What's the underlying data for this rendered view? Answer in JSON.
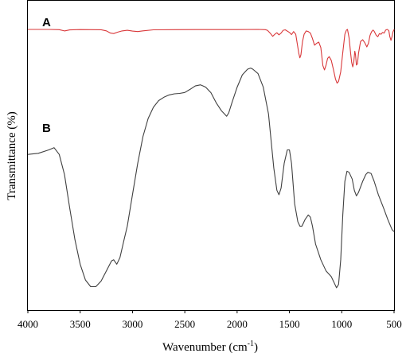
{
  "chart_data": {
    "type": "line",
    "title": "",
    "xlabel": "Wavenumber (cm",
    "xlabel_sup": "-1",
    "xlabel_tail": ")",
    "ylabel": "Transmittance (%)",
    "xlim": [
      4000,
      500
    ],
    "x_reversed": true,
    "y_ticks_shown": false,
    "grid": false,
    "xticks": [
      4000,
      3500,
      3000,
      2500,
      2000,
      1500,
      1000,
      500
    ],
    "xtick_labels": [
      "4000",
      "3500",
      "3000",
      "2500",
      "2000",
      "1500",
      "1000",
      "500"
    ],
    "series": [
      {
        "name": "A",
        "color": "#d9383a",
        "points": [
          [
            4000,
            100
          ],
          [
            3800,
            100
          ],
          [
            3700,
            99.6
          ],
          [
            3650,
            97.5
          ],
          [
            3600,
            99.2
          ],
          [
            3500,
            99.8
          ],
          [
            3300,
            99.5
          ],
          [
            3250,
            97.6
          ],
          [
            3210,
            94.0
          ],
          [
            3180,
            93.2
          ],
          [
            3140,
            95.5
          ],
          [
            3100,
            97.5
          ],
          [
            3050,
            98.6
          ],
          [
            3000,
            97.3
          ],
          [
            2950,
            96.4
          ],
          [
            2900,
            97.6
          ],
          [
            2800,
            99.4
          ],
          [
            2600,
            99.6
          ],
          [
            2400,
            99.8
          ],
          [
            2200,
            99.7
          ],
          [
            2000,
            99.8
          ],
          [
            1800,
            100
          ],
          [
            1730,
            99.6
          ],
          [
            1710,
            98.5
          ],
          [
            1680,
            93.0
          ],
          [
            1660,
            88.5
          ],
          [
            1640,
            92.0
          ],
          [
            1620,
            94.5
          ],
          [
            1600,
            91.0
          ],
          [
            1580,
            94.0
          ],
          [
            1560,
            98.5
          ],
          [
            1540,
            99.4
          ],
          [
            1500,
            95.0
          ],
          [
            1480,
            91.5
          ],
          [
            1460,
            96.5
          ],
          [
            1440,
            92.0
          ],
          [
            1410,
            60.0
          ],
          [
            1400,
            53.0
          ],
          [
            1390,
            58.0
          ],
          [
            1375,
            80.0
          ],
          [
            1360,
            92.0
          ],
          [
            1340,
            97.5
          ],
          [
            1320,
            96.5
          ],
          [
            1300,
            94.0
          ],
          [
            1280,
            85.0
          ],
          [
            1260,
            74.0
          ],
          [
            1240,
            77.0
          ],
          [
            1220,
            79.0
          ],
          [
            1200,
            70.0
          ],
          [
            1180,
            40.0
          ],
          [
            1165,
            33.0
          ],
          [
            1150,
            41.0
          ],
          [
            1135,
            52.0
          ],
          [
            1120,
            55.0
          ],
          [
            1100,
            49.0
          ],
          [
            1080,
            34.0
          ],
          [
            1060,
            18.0
          ],
          [
            1045,
            11.0
          ],
          [
            1030,
            14.0
          ],
          [
            1010,
            30.0
          ],
          [
            990,
            62.0
          ],
          [
            970,
            92.0
          ],
          [
            955,
            99.0
          ],
          [
            945,
            100
          ],
          [
            930,
            86.0
          ],
          [
            915,
            60.0
          ],
          [
            905,
            45.0
          ],
          [
            895,
            38.0
          ],
          [
            885,
            46.0
          ],
          [
            875,
            64.0
          ],
          [
            868,
            58.0
          ],
          [
            860,
            41.0
          ],
          [
            850,
            43.0
          ],
          [
            840,
            60.0
          ],
          [
            820,
            80.0
          ],
          [
            800,
            83.0
          ],
          [
            780,
            78.0
          ],
          [
            760,
            71.0
          ],
          [
            745,
            77.0
          ],
          [
            730,
            90.0
          ],
          [
            715,
            96.0
          ],
          [
            700,
            99.0
          ],
          [
            690,
            97.0
          ],
          [
            670,
            90.0
          ],
          [
            655,
            88.0
          ],
          [
            640,
            93.0
          ],
          [
            625,
            92.0
          ],
          [
            610,
            95.0
          ],
          [
            595,
            94.0
          ],
          [
            580,
            99.0
          ],
          [
            565,
            100
          ],
          [
            550,
            98.0
          ],
          [
            540,
            88.0
          ],
          [
            530,
            82.0
          ],
          [
            520,
            88.0
          ],
          [
            510,
            96.0
          ],
          [
            500,
            100
          ]
        ]
      },
      {
        "name": "B",
        "color": "#404040",
        "points": [
          [
            4000,
            62.0
          ],
          [
            3900,
            62.5
          ],
          [
            3800,
            64.0
          ],
          [
            3750,
            65.0
          ],
          [
            3700,
            62.0
          ],
          [
            3650,
            53.0
          ],
          [
            3600,
            38.0
          ],
          [
            3550,
            24.0
          ],
          [
            3500,
            13.0
          ],
          [
            3450,
            6.0
          ],
          [
            3400,
            3.0
          ],
          [
            3350,
            3.0
          ],
          [
            3300,
            5.5
          ],
          [
            3250,
            10.0
          ],
          [
            3200,
            14.5
          ],
          [
            3180,
            15.0
          ],
          [
            3150,
            13.0
          ],
          [
            3120,
            16.0
          ],
          [
            3080,
            24.0
          ],
          [
            3050,
            30.0
          ],
          [
            3000,
            44.0
          ],
          [
            2950,
            58.0
          ],
          [
            2900,
            70.0
          ],
          [
            2850,
            78.0
          ],
          [
            2800,
            83.0
          ],
          [
            2750,
            86.0
          ],
          [
            2700,
            87.5
          ],
          [
            2650,
            88.5
          ],
          [
            2600,
            89.0
          ],
          [
            2550,
            89.2
          ],
          [
            2500,
            89.6
          ],
          [
            2450,
            91.0
          ],
          [
            2400,
            92.5
          ],
          [
            2350,
            93.0
          ],
          [
            2300,
            92.0
          ],
          [
            2250,
            89.5
          ],
          [
            2200,
            85.0
          ],
          [
            2150,
            81.5
          ],
          [
            2120,
            80.0
          ],
          [
            2100,
            79.0
          ],
          [
            2080,
            80.5
          ],
          [
            2050,
            85.0
          ],
          [
            2000,
            92.0
          ],
          [
            1950,
            97.5
          ],
          [
            1900,
            100
          ],
          [
            1870,
            100.5
          ],
          [
            1850,
            100
          ],
          [
            1800,
            98.0
          ],
          [
            1750,
            92.0
          ],
          [
            1700,
            80.0
          ],
          [
            1650,
            56.0
          ],
          [
            1620,
            46.0
          ],
          [
            1600,
            44.0
          ],
          [
            1580,
            47.0
          ],
          [
            1550,
            58.0
          ],
          [
            1520,
            64.0
          ],
          [
            1500,
            64.0
          ],
          [
            1480,
            58.0
          ],
          [
            1450,
            40.0
          ],
          [
            1420,
            32.0
          ],
          [
            1400,
            30.0
          ],
          [
            1380,
            30.0
          ],
          [
            1350,
            33.0
          ],
          [
            1320,
            35.0
          ],
          [
            1300,
            34.0
          ],
          [
            1280,
            30.0
          ],
          [
            1250,
            22.0
          ],
          [
            1200,
            15.0
          ],
          [
            1150,
            10.0
          ],
          [
            1100,
            7.5
          ],
          [
            1070,
            4.5
          ],
          [
            1050,
            2.5
          ],
          [
            1030,
            4.0
          ],
          [
            1010,
            15.0
          ],
          [
            990,
            35.0
          ],
          [
            970,
            50.0
          ],
          [
            950,
            54.5
          ],
          [
            930,
            54.0
          ],
          [
            900,
            51.0
          ],
          [
            880,
            46.0
          ],
          [
            860,
            43.5
          ],
          [
            840,
            45.0
          ],
          [
            800,
            50.0
          ],
          [
            770,
            53.0
          ],
          [
            750,
            54.0
          ],
          [
            720,
            53.5
          ],
          [
            690,
            50.0
          ],
          [
            650,
            44.0
          ],
          [
            600,
            38.0
          ],
          [
            560,
            33.0
          ],
          [
            520,
            28.5
          ],
          [
            500,
            27.5
          ]
        ]
      }
    ]
  }
}
